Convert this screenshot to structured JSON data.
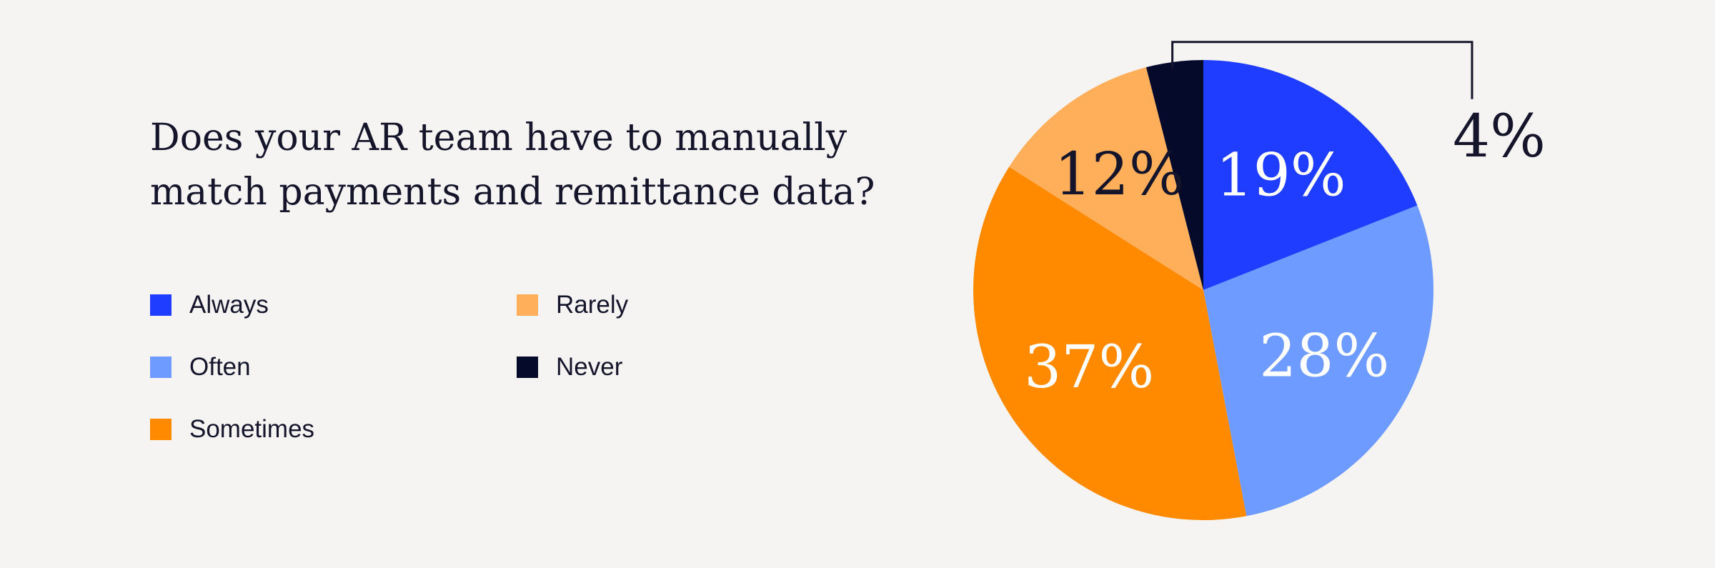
{
  "chart_data": {
    "type": "pie",
    "title": "Does your AR team have to manually match payments and remittance data?",
    "categories": [
      "Always",
      "Often",
      "Sometimes",
      "Rarely",
      "Never"
    ],
    "values": [
      19,
      28,
      37,
      12,
      4
    ],
    "labels": [
      "19%",
      "28%",
      "37%",
      "12%",
      "4%"
    ],
    "colors": [
      "#1f3dff",
      "#6e9bff",
      "#ff8a00",
      "#ffae5a",
      "#050a2b"
    ],
    "label_colors": [
      "#ffffff",
      "#ffffff",
      "#ffffff",
      "#14142b",
      "#14142b"
    ],
    "start_angle": "12 o'clock, clockwise",
    "legend_position": "left"
  }
}
